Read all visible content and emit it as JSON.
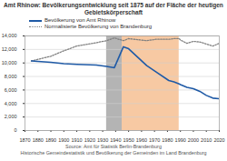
{
  "chart_data": {
    "type": "line",
    "title": "Amt Rhinow: Bevölkerungsentwicklung seit 1875 auf der Fläche der heutigen Gebietskörperschaft",
    "x": [
      1875,
      1890,
      1900,
      1910,
      1925,
      1933,
      1939,
      1946,
      1950,
      1964,
      1971,
      1981,
      1985,
      1989,
      1990,
      1995,
      2000,
      2005,
      2010,
      2015,
      2020
    ],
    "series": [
      {
        "name": "Bevölkerung von Amt Rhinow",
        "color": "#1f5aa6",
        "line_style": "solid",
        "values": [
          10300,
          10100,
          9900,
          9800,
          9700,
          9500,
          9300,
          12400,
          12100,
          9600,
          8700,
          7400,
          7200,
          6900,
          6800,
          6400,
          6200,
          5800,
          5200,
          4800,
          4700
        ]
      },
      {
        "name": "Normalisierte Bevölkerung von Brandenburg",
        "color": "#808080",
        "line_style": "dotted",
        "values": [
          10300,
          11000,
          11800,
          12500,
          13000,
          13300,
          13700,
          13300,
          13600,
          13300,
          13500,
          13500,
          13600,
          13600,
          13400,
          12900,
          13200,
          13100,
          12800,
          12500,
          12900
        ]
      }
    ],
    "shaded_regions": [
      {
        "x": [
          1933,
          1945
        ],
        "color": "#b4b4b4"
      },
      {
        "x": [
          1945,
          1989
        ],
        "color": "#f7c9a3"
      }
    ],
    "xlim": [
      1870,
      2020
    ],
    "xticks": [
      1870,
      1880,
      1890,
      1900,
      1910,
      1920,
      1930,
      1940,
      1950,
      1960,
      1970,
      1980,
      1990,
      2000,
      2010,
      2020
    ],
    "ylim": [
      0,
      14000
    ],
    "yticks": [
      0,
      {
        "value": 2000,
        "label": "2,000"
      },
      {
        "value": 4000,
        "label": "4,000"
      },
      {
        "value": 6000,
        "label": "6,000"
      },
      {
        "value": 8000,
        "label": "8,000"
      },
      {
        "value": 10000,
        "label": "10,000"
      },
      {
        "value": 12000,
        "label": "12,000"
      },
      {
        "value": 14000,
        "label": "14,000"
      }
    ],
    "grid": true,
    "source": [
      "Source: Amt für Statistik Berlin-Brandenburg",
      "Historische Gemeindestatistik und Bevölkerung der Gemeinden im Land Brandenburg"
    ]
  }
}
